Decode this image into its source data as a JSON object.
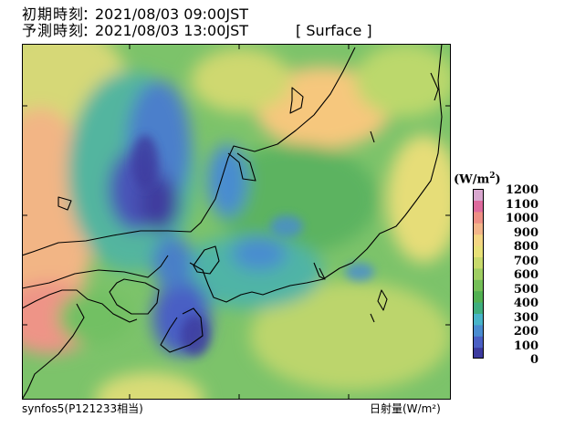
{
  "header": {
    "init_label": "初期時刻",
    "init_value": "2021/08/03 09:00JST",
    "forecast_label": "予測時刻",
    "forecast_value": "2021/08/03 13:00JST",
    "level": "[ Surface ]",
    "colon": "："
  },
  "footer": {
    "source": "synfos5(P121233相当)",
    "variable": "日射量(W/m²)"
  },
  "colorbar": {
    "unit_prefix": "(W/m",
    "unit_sup": "2",
    "unit_suffix": ")",
    "ticks": [
      "1200",
      "1100",
      "1000",
      "900",
      "800",
      "700",
      "600",
      "500",
      "400",
      "300",
      "200",
      "100",
      "0"
    ],
    "colors": [
      "#3c3a9e",
      "#4a5fc4",
      "#4a8cd0",
      "#48b4c8",
      "#3fae7e",
      "#52b152",
      "#74bf57",
      "#9fce62",
      "#c8da6c",
      "#e8e178",
      "#f4d683",
      "#f3b58a",
      "#ee8f85",
      "#de6a9d",
      "#d9a7cf"
    ]
  },
  "map": {
    "field": "surface solar radiation"
  }
}
